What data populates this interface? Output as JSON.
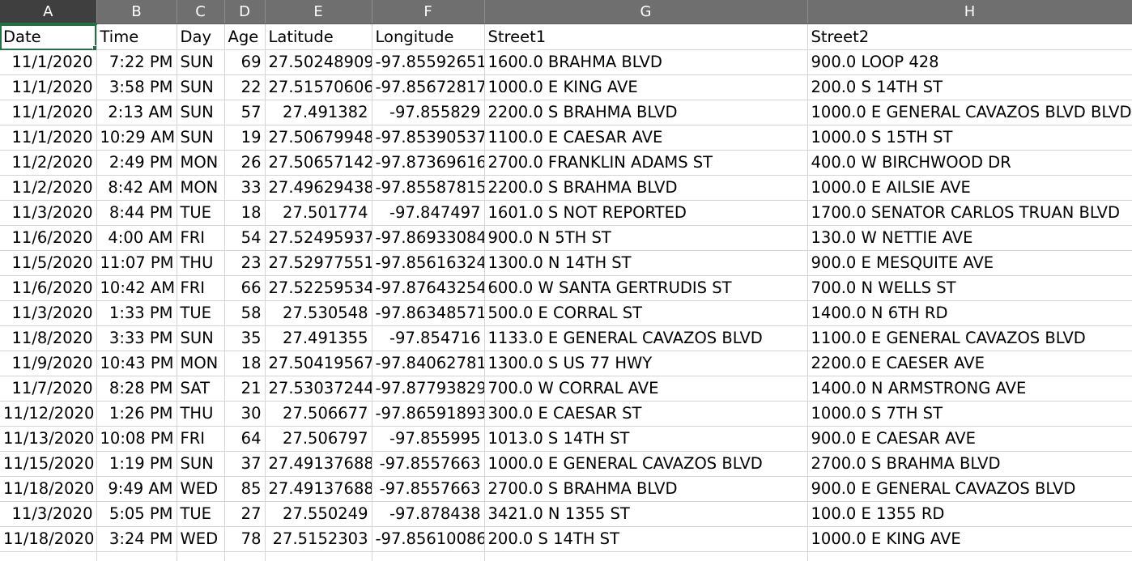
{
  "columns": [
    "A",
    "B",
    "C",
    "D",
    "E",
    "F",
    "G",
    "H"
  ],
  "header_row": [
    "Date",
    "Time",
    "Day",
    "Age",
    "Latitude",
    "Longitude",
    "Street1",
    "Street2"
  ],
  "selected_cell": "A1",
  "rows": [
    [
      "11/1/2020",
      "7:22 PM",
      "SUN",
      "69",
      "27.50248909",
      "-97.85592651",
      "1600.0  BRAHMA BLVD",
      "900.0  LOOP 428"
    ],
    [
      "11/1/2020",
      "3:58 PM",
      "SUN",
      "22",
      "27.51570606",
      "-97.85672817",
      "1000.0 E KING AVE",
      "200.0 S 14TH ST"
    ],
    [
      "11/1/2020",
      "2:13 AM",
      "SUN",
      "57",
      "27.491382",
      "-97.855829",
      "2200.0 S BRAHMA BLVD",
      "1000.0 E GENERAL CAVAZOS BLVD BLVD"
    ],
    [
      "11/1/2020",
      "10:29 AM",
      "SUN",
      "19",
      "27.50679948",
      "-97.85390537",
      "1100.0 E CAESAR AVE",
      "1000.0 S 15TH ST"
    ],
    [
      "11/2/2020",
      "2:49 PM",
      "MON",
      "26",
      "27.50657142",
      "-97.87369616",
      "2700.0  FRANKLIN ADAMS ST",
      "400.0 W BIRCHWOOD DR"
    ],
    [
      "11/2/2020",
      "8:42 AM",
      "MON",
      "33",
      "27.49629438",
      "-97.85587815",
      "2200.0 S BRAHMA BLVD",
      "1000.0 E AILSIE AVE"
    ],
    [
      "11/3/2020",
      "8:44 PM",
      "TUE",
      "18",
      "27.501774",
      "-97.847497",
      "1601.0 S NOT REPORTED",
      "1700.0  SENATOR CARLOS TRUAN BLVD"
    ],
    [
      "11/6/2020",
      "4:00 AM",
      "FRI",
      "54",
      "27.52495937",
      "-97.86933084",
      "900.0 N 5TH ST",
      "130.0 W NETTIE AVE"
    ],
    [
      "11/5/2020",
      "11:07 PM",
      "THU",
      "23",
      "27.52977551",
      "-97.85616324",
      "1300.0 N 14TH ST",
      "900.0 E MESQUITE AVE"
    ],
    [
      "11/6/2020",
      "10:42 AM",
      "FRI",
      "66",
      "27.52259534",
      "-97.87643254",
      "600.0 W SANTA GERTRUDIS ST",
      "700.0 N WELLS ST"
    ],
    [
      "11/3/2020",
      "1:33 PM",
      "TUE",
      "58",
      "27.530548",
      "-97.86348571",
      "500.0 E CORRAL ST",
      "1400.0 N 6TH RD"
    ],
    [
      "11/8/2020",
      "3:33 PM",
      "SUN",
      "35",
      "27.491355",
      "-97.854716",
      "1133.0 E GENERAL CAVAZOS BLVD",
      "1100.0 E GENERAL CAVAZOS BLVD"
    ],
    [
      "11/9/2020",
      "10:43 PM",
      "MON",
      "18",
      "27.50419567",
      "-97.84062781",
      "1300.0 S US 77 HWY",
      "2200.0 E CAESER AVE"
    ],
    [
      "11/7/2020",
      "8:28 PM",
      "SAT",
      "21",
      "27.53037244",
      "-97.87793829",
      "700.0 W CORRAL AVE",
      "1400.0 N ARMSTRONG AVE"
    ],
    [
      "11/12/2020",
      "1:26 PM",
      "THU",
      "30",
      "27.506677",
      "-97.86591893",
      "300.0 E CAESAR ST",
      "1000.0 S 7TH ST"
    ],
    [
      "11/13/2020",
      "10:08 PM",
      "FRI",
      "64",
      "27.506797",
      "-97.855995",
      "1013.0 S 14TH ST",
      "900.0 E CAESAR AVE"
    ],
    [
      "11/15/2020",
      "1:19 PM",
      "SUN",
      "37",
      "27.49137688",
      "-97.8557663",
      "1000.0 E GENERAL CAVAZOS BLVD",
      "2700.0 S BRAHMA BLVD"
    ],
    [
      "11/18/2020",
      "9:49 AM",
      "WED",
      "85",
      "27.49137688",
      "-97.8557663",
      "2700.0 S BRAHMA BLVD",
      "900.0 E GENERAL CAVAZOS BLVD"
    ],
    [
      "11/3/2020",
      "5:05 PM",
      "TUE",
      "27",
      "27.550249",
      "-97.878438",
      "3421.0 N 1355 ST",
      "100.0 E 1355 RD"
    ],
    [
      "11/18/2020",
      "3:24 PM",
      "WED",
      "78",
      "27.5152303",
      "-97.85610086",
      "200.0 S 14TH ST",
      "1000.0 E KING AVE"
    ]
  ],
  "colors": {
    "header_bg": "#6f6f6f",
    "header_active_bg": "#3f3f3f",
    "selection": "#217346",
    "gridline": "#d4d4d4"
  }
}
